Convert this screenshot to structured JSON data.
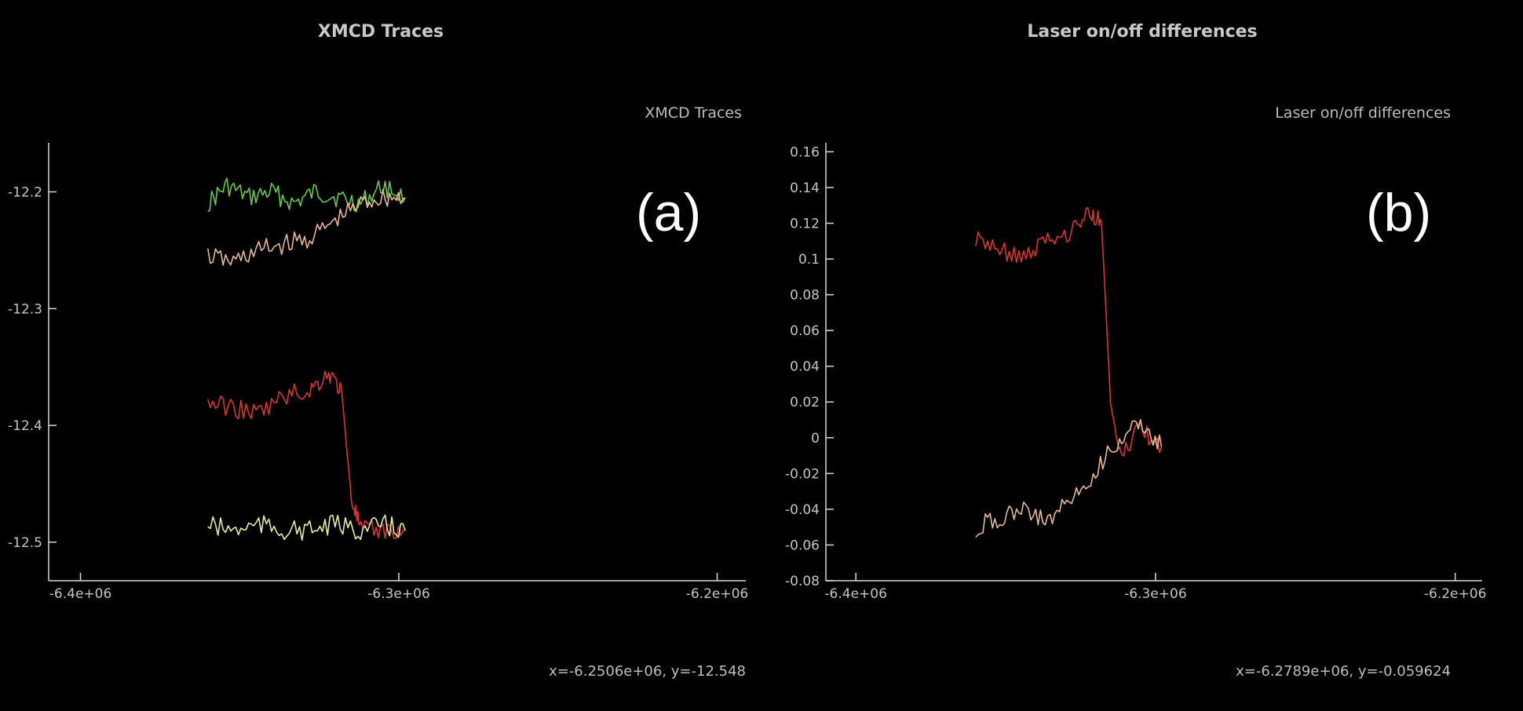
{
  "panel_a": {
    "window_title": "XMCD Traces",
    "label": "(a)",
    "coord_readout": "x=-6.2506e+06, y=-12.548"
  },
  "panel_b": {
    "window_title": "Laser on/off differences",
    "label": "(b)",
    "coord_readout": "x=-6.2789e+06, y=-0.059624"
  },
  "chart_data": [
    {
      "type": "line",
      "title": "XMCD Traces",
      "xlabel": "",
      "ylabel": "",
      "xlim": [
        -6410000,
        -6191000
      ],
      "ylim": [
        -12.533,
        -12.158
      ],
      "x_ticks": [
        -6400000,
        -6300000,
        -6200000
      ],
      "x_tick_labels": [
        "-6.4e+06",
        "-6.3e+06",
        "-6.2e+06"
      ],
      "y_ticks": [
        -12.5,
        -12.4,
        -12.3,
        -12.2
      ],
      "y_tick_labels": [
        "-12.5",
        "-12.4",
        "-12.3",
        "-12.2"
      ],
      "grid": false,
      "legend": "none",
      "series": [
        {
          "color": "#66cc44",
          "x": [
            -6360000,
            -6354000,
            -6347000,
            -6340000,
            -6333000,
            -6326000,
            -6319000,
            -6312000,
            -6305000,
            -6298000
          ],
          "y": [
            -12.21,
            -12.195,
            -12.205,
            -12.2,
            -12.21,
            -12.2,
            -12.205,
            -12.21,
            -12.195,
            -12.205
          ]
        },
        {
          "color": "#e6b89c",
          "x": [
            -6360000,
            -6352000,
            -6344000,
            -6336000,
            -6328000,
            -6320000,
            -6312000,
            -6305000,
            -6298000
          ],
          "y": [
            -12.255,
            -12.26,
            -12.25,
            -12.245,
            -12.24,
            -12.225,
            -12.21,
            -12.205,
            -12.205
          ]
        },
        {
          "color": "#dd3333",
          "x": [
            -6360000,
            -6352000,
            -6344000,
            -6336000,
            -6328000,
            -6322000,
            -6318000,
            -6315000,
            -6312000,
            -6305000,
            -6298000
          ],
          "y": [
            -12.38,
            -12.385,
            -12.39,
            -12.375,
            -12.37,
            -12.355,
            -12.37,
            -12.46,
            -12.49,
            -12.49,
            -12.49
          ]
        },
        {
          "color": "#e6ee99",
          "x": [
            -6360000,
            -6352000,
            -6344000,
            -6336000,
            -6328000,
            -6320000,
            -6312000,
            -6305000,
            -6298000
          ],
          "y": [
            -12.485,
            -12.49,
            -12.485,
            -12.49,
            -12.49,
            -12.485,
            -12.49,
            -12.485,
            -12.49
          ]
        }
      ]
    },
    {
      "type": "line",
      "title": "Laser on/off differences",
      "xlabel": "",
      "ylabel": "",
      "xlim": [
        -6410000,
        -6191000
      ],
      "ylim": [
        -0.08,
        0.165
      ],
      "x_ticks": [
        -6400000,
        -6300000,
        -6200000
      ],
      "x_tick_labels": [
        "-6.4e+06",
        "-6.3e+06",
        "-6.2e+06"
      ],
      "y_ticks": [
        -0.08,
        -0.06,
        -0.04,
        -0.02,
        0,
        0.02,
        0.04,
        0.06,
        0.08,
        0.1,
        0.12,
        0.14,
        0.16
      ],
      "y_tick_labels": [
        "-0.08",
        "-0.06",
        "-0.04",
        "-0.02",
        "0",
        "0.02",
        "0.04",
        "0.06",
        "0.08",
        "0.1",
        "0.12",
        "0.14",
        "0.16"
      ],
      "grid": false,
      "legend": "none",
      "series": [
        {
          "color": "#dd3333",
          "x": [
            -6360000,
            -6352000,
            -6344000,
            -6336000,
            -6328000,
            -6322000,
            -6318000,
            -6315000,
            -6312000,
            -6305000,
            -6298000
          ],
          "y": [
            0.11,
            0.105,
            0.1,
            0.11,
            0.115,
            0.125,
            0.12,
            0.02,
            -0.01,
            0.005,
            -0.005
          ]
        },
        {
          "color": "#e6b89c",
          "x": [
            -6360000,
            -6352000,
            -6344000,
            -6336000,
            -6328000,
            -6320000,
            -6312000,
            -6305000,
            -6298000
          ],
          "y": [
            -0.05,
            -0.045,
            -0.04,
            -0.045,
            -0.035,
            -0.02,
            0.0,
            0.01,
            -0.005
          ]
        }
      ]
    }
  ]
}
